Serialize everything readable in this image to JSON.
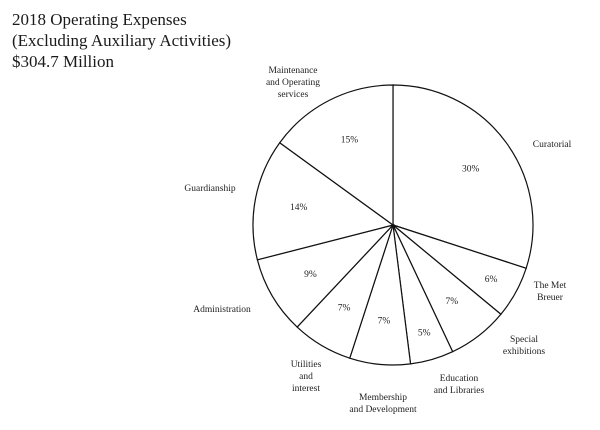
{
  "chart_data": {
    "type": "pie",
    "title": "2018 Operating Expenses",
    "subtitle": "(Excluding Auxiliary Activities)",
    "total": "$304.7 Million",
    "start_angle_deg": -90,
    "direction": "clockwise",
    "slices": [
      {
        "label": "Curatorial",
        "label_lines": [
          "Curatorial"
        ],
        "value": 30,
        "pct_label": "30%"
      },
      {
        "label": "The Met Breuer",
        "label_lines": [
          "The Met",
          "Breuer"
        ],
        "value": 6,
        "pct_label": "6%"
      },
      {
        "label": "Special exhibitions",
        "label_lines": [
          "Special",
          "exhibitions"
        ],
        "value": 7,
        "pct_label": "7%"
      },
      {
        "label": "Education and Libraries",
        "label_lines": [
          "Education",
          "and Libraries"
        ],
        "value": 5,
        "pct_label": "5%"
      },
      {
        "label": "Membership and Development",
        "label_lines": [
          "Membership",
          "and Development"
        ],
        "value": 7,
        "pct_label": "7%"
      },
      {
        "label": "Utilities and interest",
        "label_lines": [
          "Utilities",
          "and",
          "interest"
        ],
        "value": 7,
        "pct_label": "7%"
      },
      {
        "label": "Administration",
        "label_lines": [
          "Administration"
        ],
        "value": 9,
        "pct_label": "9%"
      },
      {
        "label": "Guardianship",
        "label_lines": [
          "Guardianship"
        ],
        "value": 14,
        "pct_label": "14%"
      },
      {
        "label": "Maintenance and Operating services",
        "label_lines": [
          "Maintenance",
          "and Operating",
          "services"
        ],
        "value": 15,
        "pct_label": "15%"
      }
    ]
  }
}
